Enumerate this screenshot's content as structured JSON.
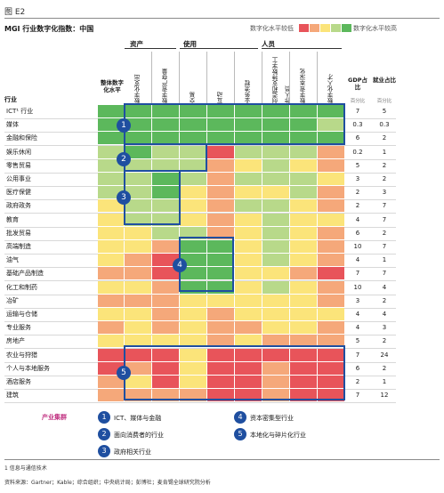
{
  "exhibit": "图 E2",
  "title": "MGI 行业数字化指数：中国",
  "legend_scale": {
    "low": "数字化水平较低",
    "high": "数字化水平较高"
  },
  "colors": {
    "scale": [
      "#e8545a",
      "#f5a87a",
      "#fbe47a",
      "#b8d98a",
      "#5cb85c"
    ],
    "box": "#1f4fa0",
    "legend_title": "#c03080"
  },
  "groups": [
    "资产",
    "使用",
    "人员"
  ],
  "columns": {
    "overall": "整体数字化水平",
    "metrics": [
      "数字化支出",
      "数字资产存量",
      "交易",
      "互动",
      "业务流程",
      "创造和支持数字工作人员",
      "数字资本深化",
      "数字化人才"
    ],
    "gdp": "GDP占比",
    "employment": "就业占比",
    "unit": "百分比"
  },
  "industry_header": "行业",
  "chart_data": {
    "type": "heatmap",
    "title": "MGI 行业数字化指数：中国",
    "scale_levels": {
      "1": "数字化水平较低",
      "5": "数字化水平较高"
    },
    "rows": [
      {
        "name": "ICT¹ 行业",
        "overall": 5,
        "levels": [
          5,
          5,
          5,
          5,
          5,
          5,
          5,
          5
        ],
        "gdp": "7",
        "emp": "5"
      },
      {
        "name": "媒体",
        "overall": 5,
        "levels": [
          5,
          5,
          5,
          5,
          5,
          5,
          5,
          4
        ],
        "gdp": "0.3",
        "emp": "0.3"
      },
      {
        "name": "金融和保险",
        "overall": 5,
        "levels": [
          5,
          5,
          5,
          5,
          5,
          5,
          5,
          5
        ],
        "gdp": "6",
        "emp": "2"
      },
      {
        "name": "娱乐休闲",
        "overall": 4,
        "levels": [
          5,
          4,
          4,
          1,
          4,
          4,
          4,
          2
        ],
        "gdp": "0.2",
        "emp": "1"
      },
      {
        "name": "零售贸易",
        "overall": 4,
        "levels": [
          4,
          4,
          4,
          2,
          3,
          4,
          3,
          2
        ],
        "gdp": "5",
        "emp": "2"
      },
      {
        "name": "公用事业",
        "overall": 4,
        "levels": [
          4,
          5,
          4,
          2,
          4,
          4,
          4,
          3
        ],
        "gdp": "3",
        "emp": "2"
      },
      {
        "name": "医疗保健",
        "overall": 4,
        "levels": [
          4,
          5,
          3,
          2,
          3,
          3,
          4,
          2
        ],
        "gdp": "2",
        "emp": "3"
      },
      {
        "name": "政府政务",
        "overall": 3,
        "levels": [
          4,
          4,
          3,
          2,
          4,
          4,
          3,
          2
        ],
        "gdp": "2",
        "emp": "7"
      },
      {
        "name": "教育",
        "overall": 3,
        "levels": [
          4,
          4,
          3,
          2,
          3,
          4,
          3,
          3
        ],
        "gdp": "4",
        "emp": "7"
      },
      {
        "name": "批发贸易",
        "overall": 3,
        "levels": [
          3,
          4,
          4,
          2,
          3,
          4,
          3,
          2
        ],
        "gdp": "6",
        "emp": "2"
      },
      {
        "name": "高端制造",
        "overall": 3,
        "levels": [
          3,
          2,
          5,
          5,
          3,
          4,
          3,
          2
        ],
        "gdp": "10",
        "emp": "7"
      },
      {
        "name": "油气",
        "overall": 3,
        "levels": [
          2,
          1,
          5,
          5,
          3,
          4,
          3,
          2
        ],
        "gdp": "4",
        "emp": "1"
      },
      {
        "name": "基础产品制造",
        "overall": 2,
        "levels": [
          2,
          1,
          5,
          5,
          3,
          3,
          2,
          1
        ],
        "gdp": "7",
        "emp": "7"
      },
      {
        "name": "化工和制药",
        "overall": 3,
        "levels": [
          3,
          2,
          5,
          5,
          3,
          4,
          3,
          2
        ],
        "gdp": "10",
        "emp": "4"
      },
      {
        "name": "冶矿",
        "overall": 2,
        "levels": [
          2,
          2,
          3,
          3,
          3,
          3,
          3,
          2
        ],
        "gdp": "3",
        "emp": "2"
      },
      {
        "name": "运输与仓储",
        "overall": 3,
        "levels": [
          3,
          2,
          3,
          2,
          3,
          3,
          3,
          3
        ],
        "gdp": "4",
        "emp": "4"
      },
      {
        "name": "专业服务",
        "overall": 2,
        "levels": [
          3,
          2,
          3,
          2,
          2,
          3,
          3,
          2
        ],
        "gdp": "4",
        "emp": "3"
      },
      {
        "name": "房地产",
        "overall": 3,
        "levels": [
          3,
          3,
          3,
          2,
          3,
          2,
          2,
          2
        ],
        "gdp": "5",
        "emp": "2"
      },
      {
        "name": "农业与狩猎",
        "overall": 1,
        "levels": [
          1,
          1,
          3,
          1,
          1,
          1,
          1,
          1
        ],
        "gdp": "7",
        "emp": "24"
      },
      {
        "name": "个人与本地服务",
        "overall": 1,
        "levels": [
          2,
          1,
          3,
          1,
          1,
          2,
          1,
          1
        ],
        "gdp": "6",
        "emp": "2"
      },
      {
        "name": "酒店服务",
        "overall": 2,
        "levels": [
          3,
          1,
          3,
          1,
          1,
          2,
          1,
          1
        ],
        "gdp": "2",
        "emp": "1"
      },
      {
        "name": "建筑",
        "overall": 2,
        "levels": [
          2,
          2,
          2,
          1,
          1,
          2,
          1,
          1
        ],
        "gdp": "7",
        "emp": "12"
      }
    ]
  },
  "boxes": [
    "1",
    "2",
    "3",
    "4",
    "5"
  ],
  "legend": {
    "title": "产业集群",
    "items": [
      {
        "n": "1",
        "text": "ICT、媒体与金融"
      },
      {
        "n": "2",
        "text": "面向消费者的行业"
      },
      {
        "n": "3",
        "text": "政府相关行业"
      },
      {
        "n": "4",
        "text": "资本密集型行业"
      },
      {
        "n": "5",
        "text": "本地化与碎片化行业"
      }
    ]
  },
  "footnote": "1 信息与通信技术",
  "source": "资料来源：Gartner；Kable；综合组织；中央统计局；彭博社；麦肯锡全球研究院分析"
}
